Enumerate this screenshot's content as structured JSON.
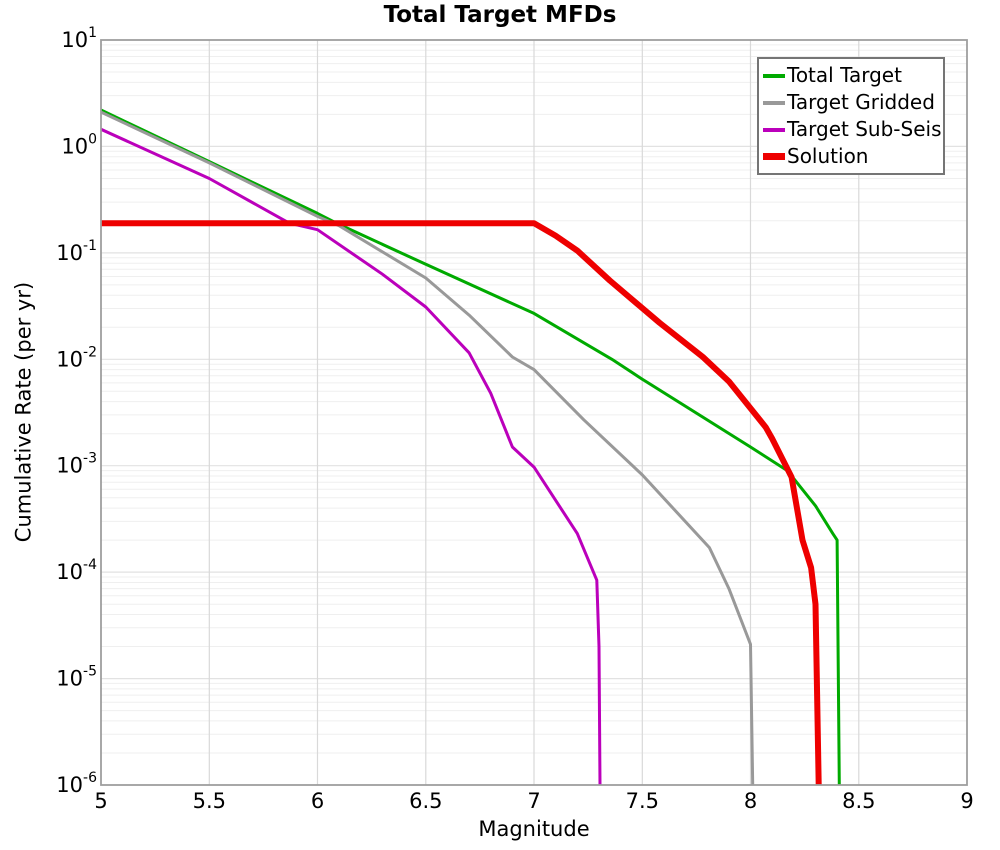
{
  "chart_data": {
    "type": "line",
    "title": "Total Target MFDs",
    "xlabel": "Magnitude",
    "ylabel": "Cumulative Rate (per yr)",
    "xlim": [
      5,
      9
    ],
    "y_scale": "log",
    "y_exp_range": [
      -6,
      1
    ],
    "x_tick_values": [
      5,
      5.5,
      6,
      6.5,
      7,
      7.5,
      8,
      8.5,
      9
    ],
    "x_tick_labels": [
      "5",
      "5.5",
      "6",
      "6.5",
      "7",
      "7.5",
      "8",
      "8.5",
      "9"
    ],
    "y_tick_exponents": [
      1,
      0,
      -1,
      -2,
      -3,
      -4,
      -5,
      -6
    ],
    "grid": {
      "vertical": true,
      "horizontal_major": true,
      "horizontal_minor": true
    },
    "legend_position": "top-right",
    "series": [
      {
        "name": "Total Target",
        "color": "#00aa00",
        "width": 3,
        "points": [
          [
            5.0,
            2.2
          ],
          [
            5.5,
            0.72
          ],
          [
            6.0,
            0.235
          ],
          [
            6.1,
            0.185
          ],
          [
            6.5,
            0.078
          ],
          [
            7.0,
            0.027
          ],
          [
            7.36,
            0.01
          ],
          [
            7.5,
            0.0065
          ],
          [
            8.0,
            0.0015
          ],
          [
            8.17,
            0.0009
          ],
          [
            8.3,
            0.00042
          ],
          [
            8.38,
            0.00023
          ],
          [
            8.4,
            0.0002
          ],
          [
            8.41,
            1e-06
          ]
        ]
      },
      {
        "name": "Target Gridded",
        "color": "#999999",
        "width": 3,
        "points": [
          [
            5.0,
            2.1
          ],
          [
            5.5,
            0.7
          ],
          [
            6.0,
            0.22
          ],
          [
            6.1,
            0.18
          ],
          [
            6.5,
            0.058
          ],
          [
            6.7,
            0.026
          ],
          [
            6.9,
            0.0105
          ],
          [
            7.0,
            0.008
          ],
          [
            7.23,
            0.0027
          ],
          [
            7.5,
            0.00082
          ],
          [
            7.81,
            0.00017
          ],
          [
            7.9,
            7e-05
          ],
          [
            8.0,
            2.1e-05
          ],
          [
            8.01,
            1e-06
          ]
        ]
      },
      {
        "name": "Target Sub-Seis",
        "color": "#bb00bb",
        "width": 3,
        "points": [
          [
            5.0,
            1.45
          ],
          [
            5.5,
            0.5
          ],
          [
            5.87,
            0.19
          ],
          [
            6.0,
            0.165
          ],
          [
            6.3,
            0.063
          ],
          [
            6.5,
            0.031
          ],
          [
            6.7,
            0.0115
          ],
          [
            6.8,
            0.0048
          ],
          [
            6.9,
            0.0015
          ],
          [
            7.0,
            0.00097
          ],
          [
            7.2,
            0.00023
          ],
          [
            7.29,
            8.4e-05
          ],
          [
            7.3,
            2e-05
          ],
          [
            7.305,
            1e-06
          ]
        ]
      },
      {
        "name": "Solution",
        "color": "#ee0000",
        "width": 6,
        "points": [
          [
            5.0,
            0.19
          ],
          [
            7.0,
            0.19
          ],
          [
            7.1,
            0.145
          ],
          [
            7.2,
            0.105
          ],
          [
            7.35,
            0.055
          ],
          [
            7.58,
            0.022
          ],
          [
            7.78,
            0.0105
          ],
          [
            7.9,
            0.0062
          ],
          [
            8.07,
            0.0023
          ],
          [
            8.1,
            0.0018
          ],
          [
            8.19,
            0.00078
          ],
          [
            8.24,
            0.0002
          ],
          [
            8.28,
            0.00011
          ],
          [
            8.3,
            5e-05
          ],
          [
            8.315,
            1e-06
          ]
        ]
      }
    ]
  }
}
